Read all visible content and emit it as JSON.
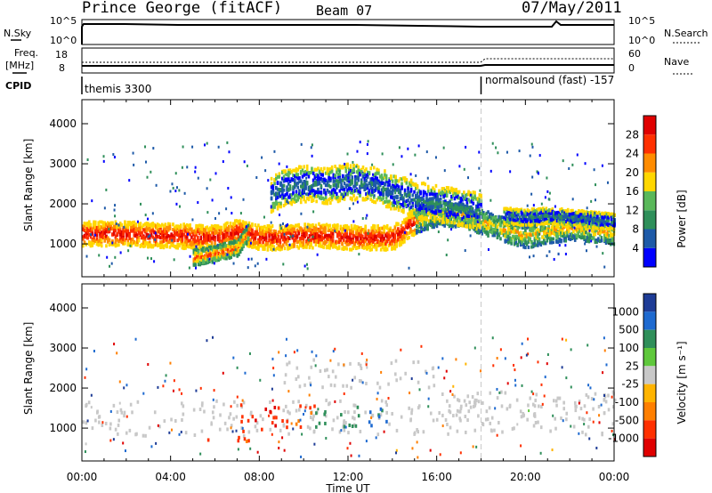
{
  "header": {
    "title": "Prince George (fitACF)",
    "beam": "Beam 07",
    "date": "07/May/2011"
  },
  "aux_panel": {
    "nsky_label": "N.Sky",
    "nsky_ticks": [
      "10^5",
      "10^0"
    ],
    "nsearch_label": "N.Search",
    "nsearch_ticks": [
      "10^5",
      "10^0"
    ],
    "freq_label": "Freq.",
    "freq_unit": "[MHz]",
    "freq_ticks": [
      "18",
      "8"
    ],
    "nave_label": "Nave",
    "nave_ticks": [
      "60",
      "0"
    ],
    "cpid_label": "CPID",
    "cpid_first": "themis 3300",
    "cpid_second": "normalsound (fast) -157",
    "cpid_change_hour": 18.0
  },
  "colors": {
    "power_scale": [
      "#0000ff",
      "#1e5aa8",
      "#2f8f5a",
      "#5ab85a",
      "#ffd700",
      "#ff8c00",
      "#ff3000",
      "#e00000"
    ],
    "velocity_scale": [
      "#1e3c96",
      "#1e6ad0",
      "#2f8f5a",
      "#5fc83c",
      "#c8c8c8",
      "#ffb400",
      "#ff7f00",
      "#ff3000",
      "#e00000"
    ]
  },
  "chart_data": [
    {
      "type": "heatmap",
      "name": "power",
      "ylabel": "Slant Range [km]",
      "xlabel": "",
      "x_ticks": [
        "00:00",
        "04:00",
        "08:00",
        "12:00",
        "16:00",
        "20:00",
        "00:00"
      ],
      "y_ticks": [
        1000,
        2000,
        3000,
        4000
      ],
      "xlim": [
        0,
        24
      ],
      "ylim": [
        180,
        4600
      ],
      "colorbar_label": "Power [dB]",
      "colorbar_ticks": [
        "28",
        "24",
        "20",
        "16",
        "12",
        "8",
        "4"
      ],
      "bands": [
        {
          "x": [
            0,
            2,
            4,
            6,
            7,
            8,
            9,
            10,
            11,
            12,
            13,
            14,
            15,
            16,
            17,
            18,
            19,
            20,
            21,
            22,
            23,
            24
          ],
          "y": [
            1250,
            1250,
            1200,
            1150,
            1300,
            1150,
            1150,
            1200,
            1200,
            1150,
            1150,
            1150,
            1550,
            1750,
            1700,
            1550,
            1350,
            1200,
            1300,
            1400,
            1350,
            1250
          ],
          "w": 300,
          "level": "strong"
        },
        {
          "x": [
            5,
            6,
            7,
            7.5
          ],
          "y": [
            650,
            750,
            900,
            1300
          ],
          "w": 200,
          "level": "mid"
        },
        {
          "x": [
            8.5,
            9,
            10,
            11,
            12,
            13,
            14,
            15,
            16,
            17,
            18
          ],
          "y": [
            2200,
            2400,
            2500,
            2450,
            2550,
            2500,
            2300,
            2100,
            2000,
            1900,
            1800
          ],
          "w": 450,
          "level": "weak"
        },
        {
          "x": [
            19,
            20,
            21,
            22,
            23,
            24
          ],
          "y": [
            1700,
            1650,
            1700,
            1650,
            1600,
            1550
          ],
          "w": 200,
          "level": "weak"
        }
      ]
    },
    {
      "type": "heatmap",
      "name": "velocity",
      "ylabel": "Slant Range [km]",
      "xlabel": "Time UT",
      "x_ticks": [
        "00:00",
        "04:00",
        "08:00",
        "12:00",
        "16:00",
        "20:00",
        "00:00"
      ],
      "y_ticks": [
        1000,
        2000,
        3000,
        4000
      ],
      "xlim": [
        0,
        24
      ],
      "ylim": [
        180,
        4600
      ],
      "colorbar_label": "Velocity [m s⁻¹]",
      "colorbar_ticks": [
        "1000",
        "500",
        "100",
        "25",
        "-25",
        "-100",
        "-500",
        "-1000"
      ],
      "regions": [
        {
          "x0": 0,
          "x1": 24,
          "y0": 800,
          "y1": 1700,
          "v": 0
        },
        {
          "x0": 6.8,
          "x1": 9,
          "y0": 900,
          "y1": 1600,
          "v": -800
        },
        {
          "x0": 9,
          "x1": 10.5,
          "y0": 1000,
          "y1": 1600,
          "v": -400
        },
        {
          "x0": 10.5,
          "x1": 12.5,
          "y0": 1000,
          "y1": 1600,
          "v": 150
        },
        {
          "x0": 12.5,
          "x1": 14,
          "y0": 1000,
          "y1": 1500,
          "v": 300
        },
        {
          "x0": 5,
          "x1": 7.5,
          "y0": 600,
          "y1": 800,
          "v": -300
        },
        {
          "x0": 9,
          "x1": 16,
          "y0": 2000,
          "y1": 2700,
          "v": 0
        },
        {
          "x0": 16,
          "x1": 24,
          "y0": 1200,
          "y1": 1900,
          "v": 0
        }
      ]
    }
  ]
}
